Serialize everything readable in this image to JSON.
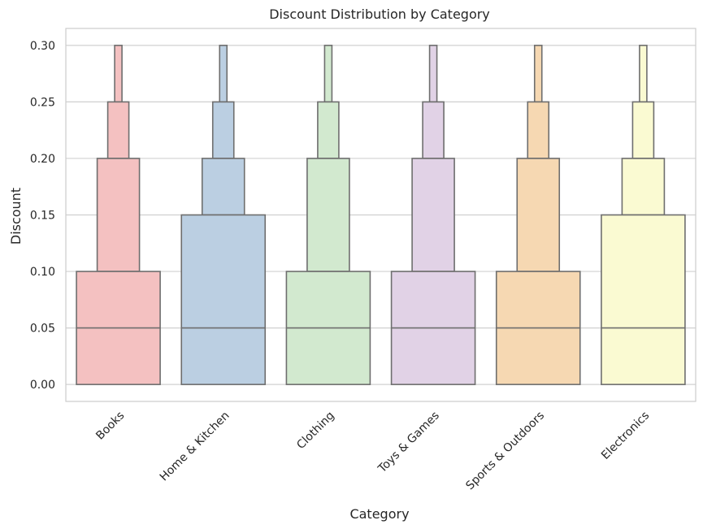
{
  "chart_data": {
    "type": "boxen",
    "title": "Discount Distribution by Category",
    "xlabel": "Category",
    "ylabel": "Discount",
    "ylim": [
      -0.015,
      0.315
    ],
    "yticks": [
      0.0,
      0.05,
      0.1,
      0.15,
      0.2,
      0.25,
      0.3
    ],
    "ytick_labels": [
      "0.00",
      "0.05",
      "0.10",
      "0.15",
      "0.20",
      "0.25",
      "0.30"
    ],
    "grid": true,
    "categories": [
      "Books",
      "Home & Kitchen",
      "Clothing",
      "Toys & Games",
      "Sports & Outdoors",
      "Electronics"
    ],
    "series": [
      {
        "category": "Books",
        "color": "#F4C1C1",
        "median": 0.05,
        "boxes": [
          {
            "low": 0.0,
            "high": 0.1
          },
          {
            "low": 0.1,
            "high": 0.2
          },
          {
            "low": 0.2,
            "high": 0.25
          },
          {
            "low": 0.25,
            "high": 0.3
          }
        ]
      },
      {
        "category": "Home & Kitchen",
        "color": "#BBCFE2",
        "median": 0.05,
        "boxes": [
          {
            "low": 0.0,
            "high": 0.15
          },
          {
            "low": 0.15,
            "high": 0.2
          },
          {
            "low": 0.2,
            "high": 0.25
          },
          {
            "low": 0.25,
            "high": 0.3
          }
        ]
      },
      {
        "category": "Clothing",
        "color": "#D2E9CF",
        "median": 0.05,
        "boxes": [
          {
            "low": 0.0,
            "high": 0.1
          },
          {
            "low": 0.1,
            "high": 0.2
          },
          {
            "low": 0.2,
            "high": 0.25
          },
          {
            "low": 0.25,
            "high": 0.3
          }
        ]
      },
      {
        "category": "Toys & Games",
        "color": "#E1D2E6",
        "median": 0.05,
        "boxes": [
          {
            "low": 0.0,
            "high": 0.1
          },
          {
            "low": 0.1,
            "high": 0.2
          },
          {
            "low": 0.2,
            "high": 0.25
          },
          {
            "low": 0.25,
            "high": 0.3
          }
        ]
      },
      {
        "category": "Sports & Outdoors",
        "color": "#F6D8B2",
        "median": 0.05,
        "boxes": [
          {
            "low": 0.0,
            "high": 0.1
          },
          {
            "low": 0.1,
            "high": 0.2
          },
          {
            "low": 0.2,
            "high": 0.25
          },
          {
            "low": 0.25,
            "high": 0.3
          }
        ]
      },
      {
        "category": "Electronics",
        "color": "#FAFAD2",
        "median": 0.05,
        "boxes": [
          {
            "low": 0.0,
            "high": 0.15
          },
          {
            "low": 0.15,
            "high": 0.2
          },
          {
            "low": 0.2,
            "high": 0.25
          },
          {
            "low": 0.25,
            "high": 0.3
          }
        ]
      }
    ],
    "colors": {
      "edge": "#6E6E6E",
      "grid": "#D0D0D0",
      "frame": "#CCCCCC",
      "text": "#262626"
    }
  }
}
